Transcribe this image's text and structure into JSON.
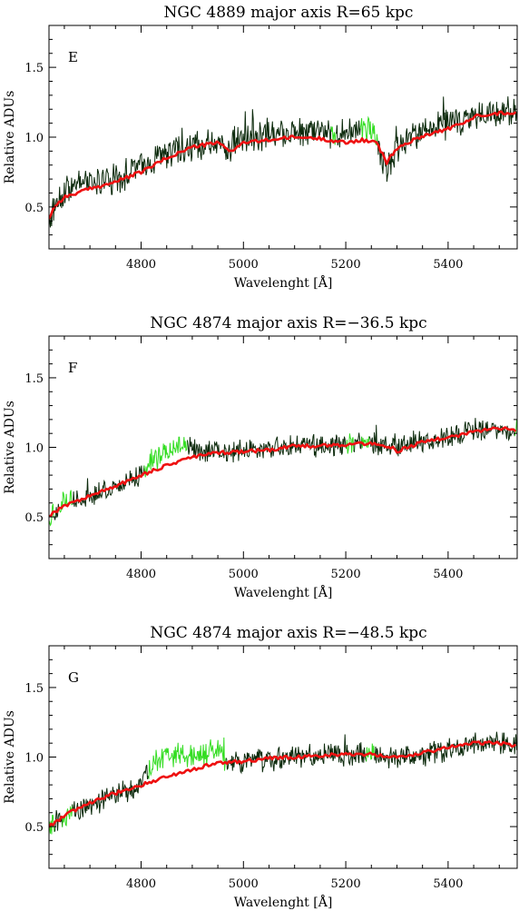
{
  "chart_data": [
    {
      "type": "line",
      "panel_letter": "E",
      "title": "NGC 4889 major axis R=65 kpc",
      "xlabel": "Wavelenght [Å]",
      "ylabel": "Relative ADUs",
      "xlim": [
        4620,
        5535
      ],
      "ylim": [
        0.2,
        1.8
      ],
      "xticks": [
        4800,
        5000,
        5200,
        5400
      ],
      "xtick_labels": [
        "4800",
        "5000",
        "5200",
        "5400"
      ],
      "yticks": [
        0.5,
        1.0,
        1.5
      ],
      "ytick_labels": [
        "0.5",
        "1.0",
        "1.5"
      ],
      "grid": false,
      "colors": {
        "observed": "#0c2a0c",
        "masked": "#33dd22",
        "model": "#ee1111"
      },
      "masked_ranges": [
        [
          5170,
          5180
        ],
        [
          5228,
          5262
        ]
      ],
      "noise": 0.09,
      "observed_anchor": {
        "x": [
          4620,
          4640,
          4660,
          4700,
          4750,
          4800,
          4850,
          4900,
          4950,
          4975,
          5000,
          5050,
          5100,
          5150,
          5200,
          5230,
          5250,
          5270,
          5280,
          5300,
          5350,
          5400,
          5450,
          5500,
          5535
        ],
        "y": [
          0.4,
          0.58,
          0.64,
          0.67,
          0.7,
          0.8,
          0.88,
          0.93,
          0.97,
          0.92,
          1.0,
          1.03,
          1.05,
          1.05,
          1.02,
          1.08,
          1.05,
          0.88,
          0.75,
          0.92,
          1.05,
          1.1,
          1.14,
          1.18,
          1.2
        ]
      },
      "series": [
        {
          "name": "",
          "x": [
            4620,
            4630,
            4650,
            4700,
            4750,
            4800,
            4850,
            4900,
            4950,
            4975,
            5000,
            5050,
            5100,
            5150,
            5200,
            5230,
            5260,
            5280,
            5300,
            5350,
            5400,
            5430,
            5460,
            5500,
            5535
          ],
          "y": [
            0.42,
            0.5,
            0.57,
            0.63,
            0.68,
            0.75,
            0.85,
            0.93,
            0.96,
            0.9,
            0.96,
            0.98,
            1.0,
            0.99,
            0.96,
            0.98,
            0.96,
            0.82,
            0.92,
            1.01,
            1.06,
            1.1,
            1.16,
            1.17,
            1.18
          ]
        }
      ]
    },
    {
      "type": "line",
      "panel_letter": "F",
      "title": "NGC 4874 major axis R=−36.5 kpc",
      "xlabel": "Wavelenght [Å]",
      "ylabel": "Relative ADUs",
      "xlim": [
        4620,
        5535
      ],
      "ylim": [
        0.2,
        1.8
      ],
      "xticks": [
        4800,
        5000,
        5200,
        5400
      ],
      "xtick_labels": [
        "4800",
        "5000",
        "5200",
        "5400"
      ],
      "yticks": [
        0.5,
        1.0,
        1.5
      ],
      "ytick_labels": [
        "0.5",
        "1.0",
        "1.5"
      ],
      "grid": false,
      "colors": {
        "observed": "#0c2a0c",
        "masked": "#33dd22",
        "model": "#ee1111"
      },
      "masked_ranges": [
        [
          4620,
          4630
        ],
        [
          4640,
          4665
        ],
        [
          4805,
          4890
        ],
        [
          5200,
          5215
        ],
        [
          5230,
          5245
        ],
        [
          5530,
          5535
        ]
      ],
      "noise": 0.065,
      "observed_anchor": {
        "x": [
          4620,
          4650,
          4700,
          4750,
          4800,
          4820,
          4850,
          4890,
          4900,
          4950,
          5000,
          5100,
          5200,
          5250,
          5300,
          5400,
          5450,
          5500,
          5535
        ],
        "y": [
          0.5,
          0.6,
          0.66,
          0.72,
          0.8,
          0.92,
          0.98,
          1.03,
          0.97,
          0.97,
          0.97,
          1.01,
          1.03,
          1.03,
          1.02,
          1.07,
          1.12,
          1.14,
          1.12
        ]
      },
      "series": [
        {
          "name": "",
          "x": [
            4620,
            4650,
            4700,
            4750,
            4800,
            4850,
            4900,
            4950,
            5000,
            5050,
            5100,
            5150,
            5200,
            5250,
            5290,
            5300,
            5350,
            5400,
            5450,
            5500,
            5535
          ],
          "y": [
            0.51,
            0.58,
            0.65,
            0.72,
            0.8,
            0.87,
            0.93,
            0.96,
            0.97,
            0.98,
            1.01,
            1.01,
            1.02,
            1.03,
            1.0,
            0.97,
            1.04,
            1.07,
            1.11,
            1.14,
            1.12
          ]
        }
      ]
    },
    {
      "type": "line",
      "panel_letter": "G",
      "title": "NGC 4874 major axis R=−48.5 kpc",
      "xlabel": "Wavelenght [Å]",
      "ylabel": "Relative ADUs",
      "xlim": [
        4620,
        5535
      ],
      "ylim": [
        0.2,
        1.8
      ],
      "xticks": [
        4800,
        5000,
        5200,
        5400
      ],
      "xtick_labels": [
        "4800",
        "5000",
        "5200",
        "5400"
      ],
      "yticks": [
        0.5,
        1.0,
        1.5
      ],
      "ytick_labels": [
        "0.5",
        "1.0",
        "1.5"
      ],
      "grid": false,
      "colors": {
        "observed": "#0c2a0c",
        "masked": "#33dd22",
        "model": "#ee1111"
      },
      "masked_ranges": [
        [
          4620,
          4630
        ],
        [
          4645,
          4665
        ],
        [
          4815,
          4965
        ],
        [
          5240,
          5255
        ]
      ],
      "noise": 0.07,
      "observed_anchor": {
        "x": [
          4620,
          4650,
          4700,
          4750,
          4800,
          4820,
          4850,
          4900,
          4950,
          4970,
          5000,
          5100,
          5200,
          5250,
          5300,
          5400,
          5450,
          5500,
          5535
        ],
        "y": [
          0.48,
          0.58,
          0.66,
          0.72,
          0.8,
          0.95,
          1.02,
          1.0,
          1.05,
          0.95,
          0.97,
          1.0,
          1.02,
          1.02,
          1.0,
          1.05,
          1.1,
          1.1,
          1.08
        ]
      },
      "series": [
        {
          "name": "",
          "x": [
            4620,
            4650,
            4700,
            4750,
            4800,
            4850,
            4900,
            4950,
            4970,
            5000,
            5050,
            5100,
            5150,
            5200,
            5250,
            5300,
            5350,
            5400,
            5450,
            5500,
            5535
          ],
          "y": [
            0.5,
            0.58,
            0.67,
            0.74,
            0.8,
            0.86,
            0.91,
            0.96,
            0.96,
            0.97,
            0.99,
            1.0,
            1.01,
            1.02,
            1.02,
            1.0,
            1.03,
            1.07,
            1.1,
            1.1,
            1.08
          ]
        }
      ]
    }
  ]
}
